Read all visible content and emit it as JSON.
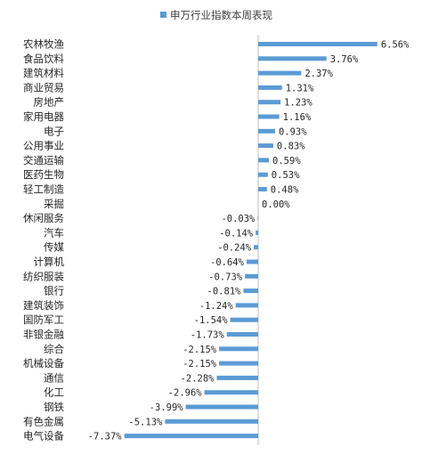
{
  "colors": {
    "bar": "#5B9BD5",
    "axis": "#BFBFBF",
    "text": "#262626"
  },
  "chart_data": {
    "type": "bar",
    "orientation": "horizontal",
    "title": "",
    "legend": {
      "position": "top",
      "label": "申万行业指数本周表现"
    },
    "xlabel": "",
    "ylabel": "",
    "grid": false,
    "xlim": [
      -7.37,
      6.56
    ],
    "series": [
      {
        "name": "申万行业指数本周表现",
        "values": [
          6.56,
          3.76,
          2.37,
          1.31,
          1.23,
          1.16,
          0.93,
          0.83,
          0.59,
          0.53,
          0.48,
          0.0,
          -0.03,
          -0.14,
          -0.24,
          -0.64,
          -0.73,
          -0.81,
          -1.24,
          -1.54,
          -1.73,
          -2.15,
          -2.15,
          -2.28,
          -2.96,
          -3.99,
          -5.13,
          -7.37
        ],
        "labels": [
          "6.56%",
          "3.76%",
          "2.37%",
          "1.31%",
          "1.23%",
          "1.16%",
          "0.93%",
          "0.83%",
          "0.59%",
          "0.53%",
          "0.48%",
          "0.00%",
          "-0.03%",
          "-0.14%",
          "-0.24%",
          "-0.64%",
          "-0.73%",
          "-0.81%",
          "-1.24%",
          "-1.54%",
          "-1.73%",
          "-2.15%",
          "-2.15%",
          "-2.28%",
          "-2.96%",
          "-3.99%",
          "-5.13%",
          "-7.37%"
        ]
      }
    ],
    "categories": [
      "农林牧渔",
      "食品饮料",
      "建筑材料",
      "商业贸易",
      "房地产",
      "家用电器",
      "电子",
      "公用事业",
      "交通运输",
      "医药生物",
      "轻工制造",
      "采掘",
      "休闲服务",
      "汽车",
      "传媒",
      "计算机",
      "纺织服装",
      "银行",
      "建筑装饰",
      "国防军工",
      "非银金融",
      "综合",
      "机械设备",
      "通信",
      "化工",
      "钢铁",
      "有色金属",
      "电气设备"
    ]
  }
}
